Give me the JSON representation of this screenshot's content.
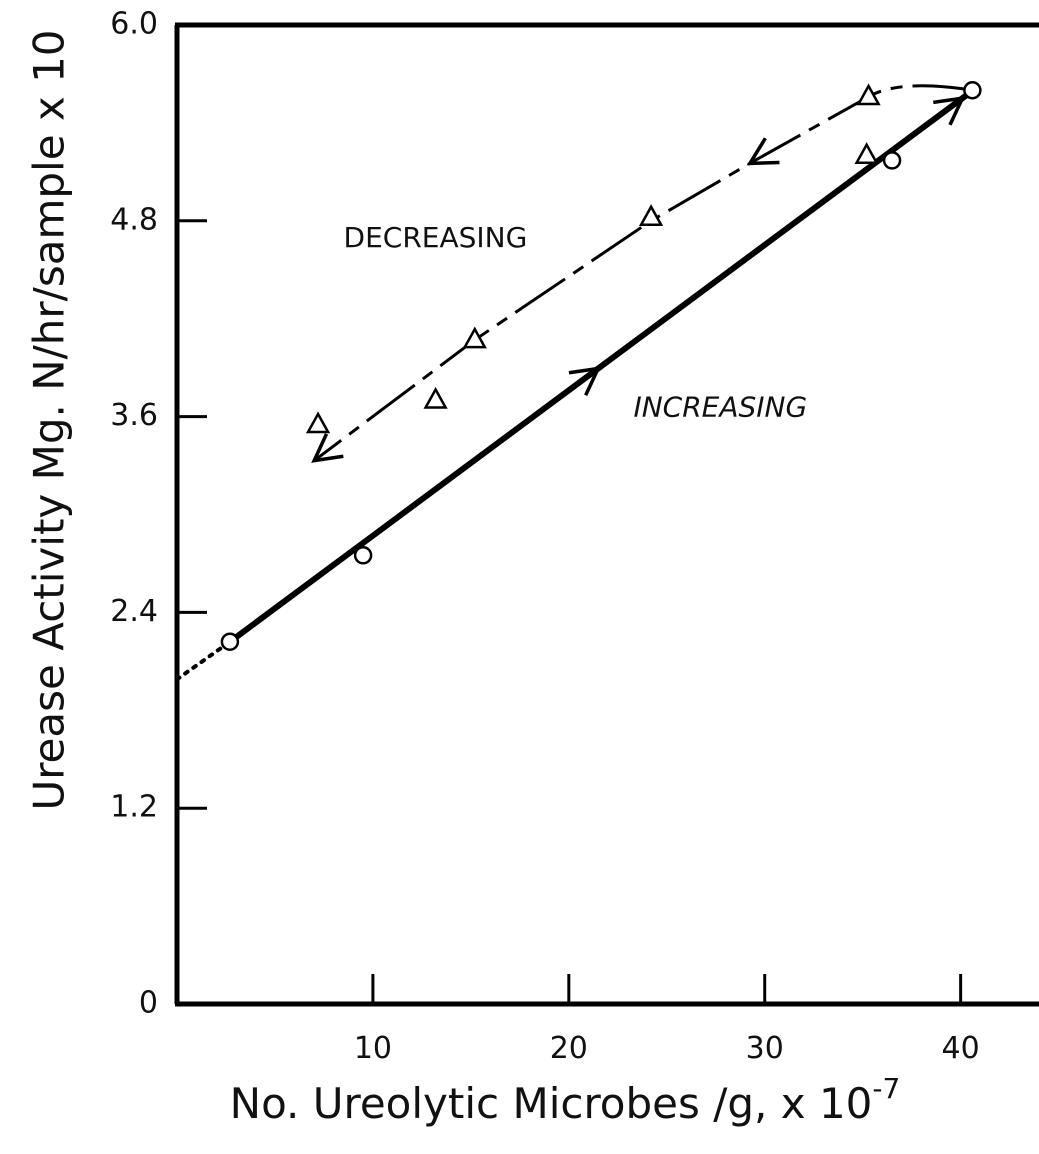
{
  "chart_data": {
    "type": "line",
    "title": "",
    "xlabel": "No. Ureolytic Microbes /g, x 10",
    "xlabel_superscript": "-7",
    "ylabel": "Urease Activity Mg. N/hr/sample x 10",
    "xlim": [
      0,
      44
    ],
    "ylim": [
      0,
      6.0
    ],
    "x_ticks": [
      10,
      20,
      30,
      40
    ],
    "x_tick_labels": [
      "10",
      "20",
      "30",
      "40"
    ],
    "y_ticks": [
      0,
      1.2,
      2.4,
      3.6,
      4.8,
      6.0
    ],
    "y_tick_labels": [
      "0",
      "1.2",
      "2.4",
      "3.6",
      "4.8",
      "6.0"
    ],
    "grid": false,
    "series": [
      {
        "name": "INCREASING",
        "marker": "circle",
        "line_style": "solid",
        "x": [
          2.7,
          9.5,
          36.5,
          40.6
        ],
        "y": [
          2.22,
          2.75,
          5.17,
          5.6
        ]
      },
      {
        "name": "DECREASING",
        "marker": "triangle",
        "line_style": "dashed",
        "x": [
          7.2,
          13.2,
          15.2,
          24.2,
          35.3,
          35.2
        ],
        "y": [
          3.55,
          3.7,
          4.07,
          4.82,
          5.56,
          5.2
        ]
      }
    ],
    "fit_lines": [
      {
        "name": "increasing-fit",
        "style": "solid",
        "x": [
          2.7,
          40.3
        ],
        "y": [
          2.22,
          5.57
        ]
      },
      {
        "name": "increasing-extrapolation",
        "style": "dotted",
        "x": [
          0,
          2.7
        ],
        "y": [
          1.99,
          2.22
        ]
      },
      {
        "name": "decreasing-fit",
        "style": "dashed",
        "x": [
          40.6,
          35.3,
          29.5,
          24.2,
          15.2,
          7.0
        ],
        "y": [
          5.6,
          5.56,
          5.17,
          4.8,
          4.07,
          3.33
        ]
      }
    ],
    "annotations": [
      {
        "text": "DECREASING",
        "x": 8.5,
        "y": 4.64
      },
      {
        "text": "INCREASING",
        "x": 23.3,
        "y": 3.6
      }
    ]
  }
}
